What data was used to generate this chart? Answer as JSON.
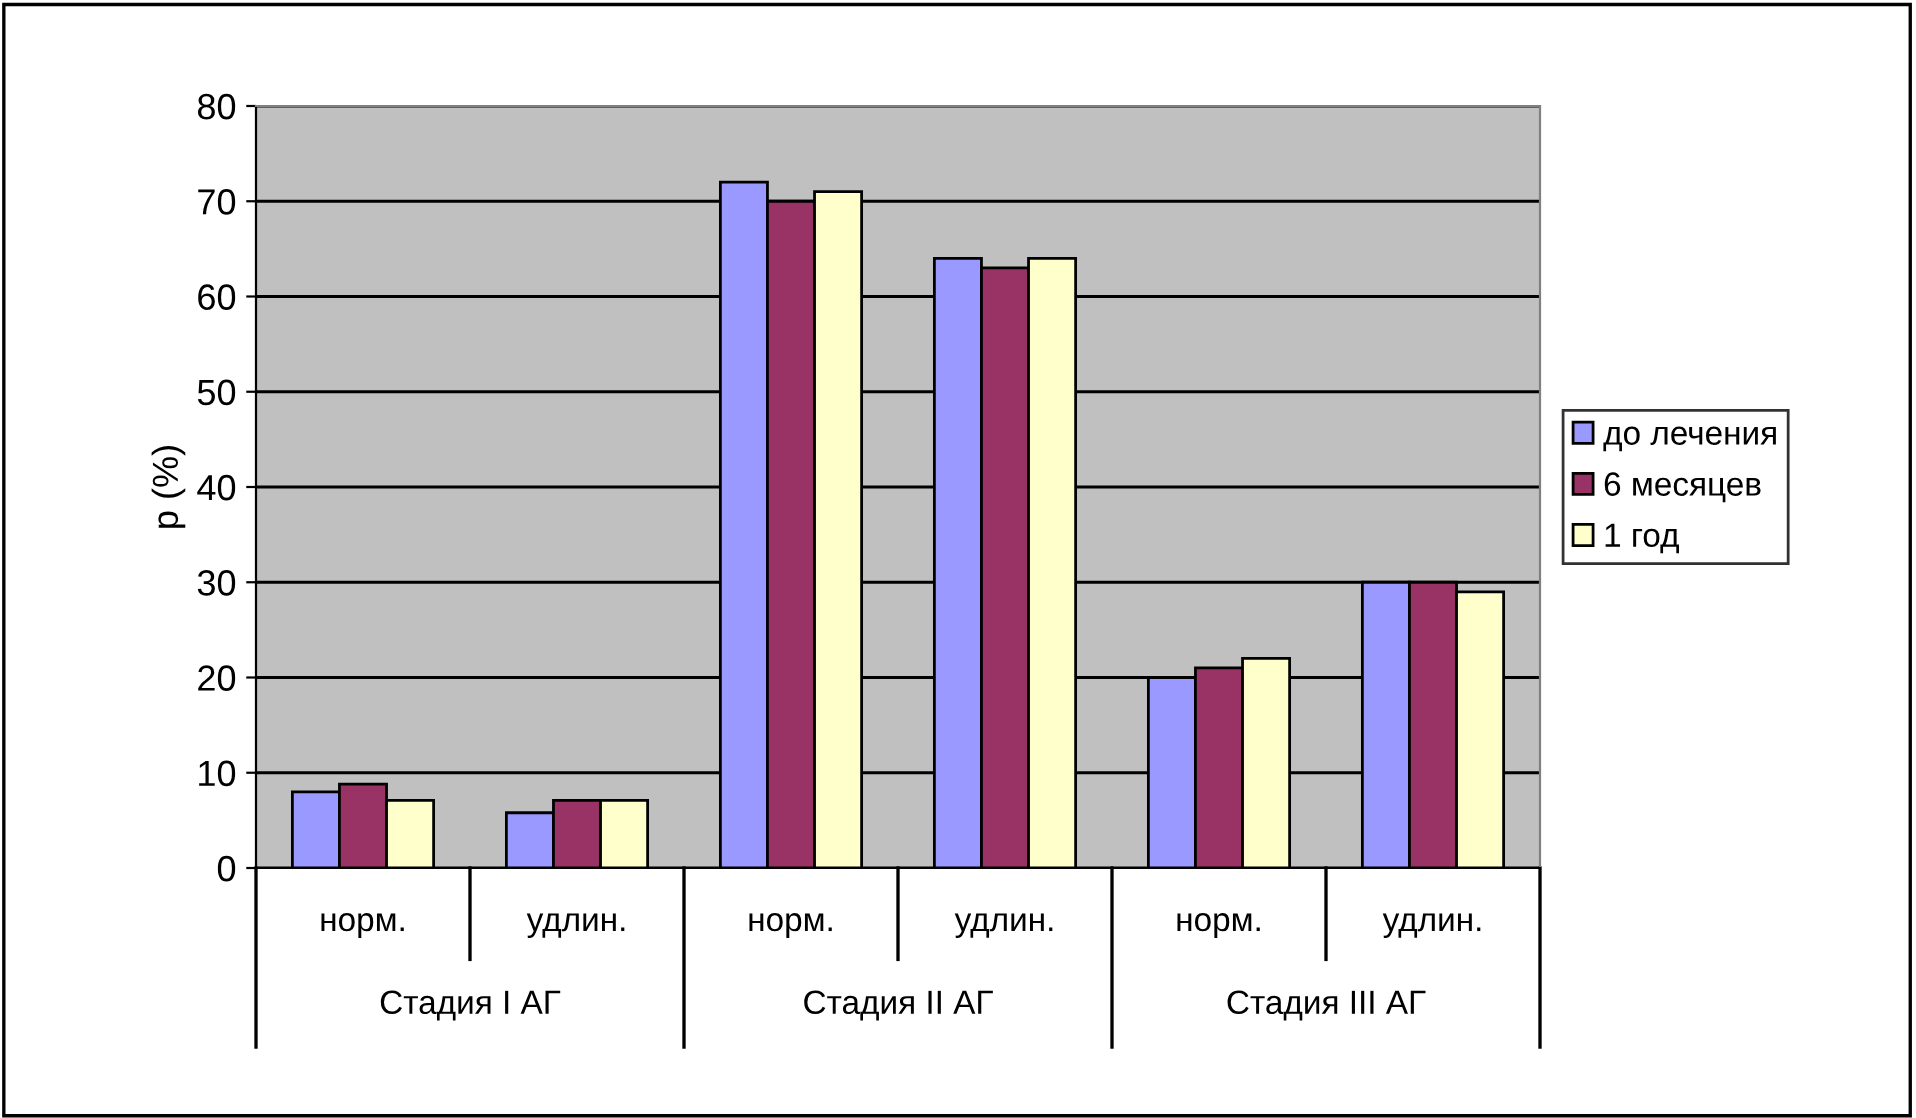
{
  "chart_data": {
    "type": "bar",
    "ylabel": "p (%)",
    "categories": [
      "норм.",
      "удлин.",
      "норм.",
      "удлин.",
      "норм.",
      "удлин."
    ],
    "annotations": [
      "Стадия I АГ",
      "Стадия II АГ",
      "Стадия III АГ"
    ],
    "series": [
      {
        "name": "до лечения",
        "color": "#9999ff",
        "values": [
          8,
          5.8,
          72,
          64,
          20,
          30
        ]
      },
      {
        "name": "6 месяцев",
        "color": "#993366",
        "values": [
          8.8,
          7.1,
          70,
          63,
          21,
          30
        ]
      },
      {
        "name": "1 год",
        "color": "#ffffcc",
        "values": [
          7.1,
          7.1,
          71,
          64,
          22,
          29
        ]
      }
    ],
    "ylim": [
      0,
      80
    ],
    "yticks": [
      0,
      10,
      20,
      30,
      40,
      50,
      60,
      70,
      80
    ],
    "grid": "y",
    "legend": "right"
  }
}
